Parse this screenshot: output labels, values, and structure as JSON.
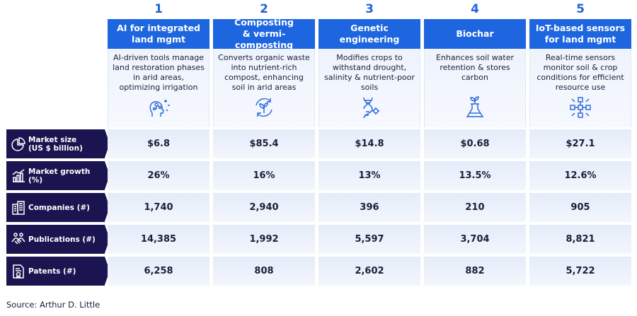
{
  "columns": [
    {
      "number": "1",
      "title": "AI for integrated\nland mgmt",
      "description": "AI-driven tools manage land restoration phases in arid areas, optimizing irrigation",
      "icon": "ai-head-icon"
    },
    {
      "number": "2",
      "title": "Composting\n& vermi-composting",
      "description": "Converts organic waste into nutrient-rich compost, enhancing soil in arid areas",
      "icon": "recycle-sprout-icon"
    },
    {
      "number": "3",
      "title": "Genetic\nengineering",
      "description": "Modifies crops to withstand drought, salinity & nutrient-poor soils",
      "icon": "dna-icon"
    },
    {
      "number": "4",
      "title": "Biochar",
      "description": "Enhances soil water retention & stores carbon",
      "icon": "flask-leaf-icon"
    },
    {
      "number": "5",
      "title": "IoT-based sensors\nfor land mgmt",
      "description": "Real-time sensors monitor soil & crop conditions for efficient resource use",
      "icon": "sensor-network-icon"
    }
  ],
  "rows": [
    {
      "label": "Market size\n(US $ billion)",
      "icon": "pie-chart-icon",
      "values": [
        "$6.8",
        "$85.4",
        "$14.8",
        "$0.68",
        "$27.1"
      ]
    },
    {
      "label": "Market growth\n(%)",
      "icon": "growth-chart-icon",
      "values": [
        "26%",
        "16%",
        "13%",
        "13.5%",
        "12.6%"
      ]
    },
    {
      "label": "Companies (#)",
      "icon": "building-icon",
      "values": [
        "1,740",
        "2,940",
        "396",
        "210",
        "905"
      ]
    },
    {
      "label": "Publications (#)",
      "icon": "handshake-icon",
      "values": [
        "14,385",
        "1,992",
        "5,597",
        "3,704",
        "8,821"
      ]
    },
    {
      "label": "Patents (#)",
      "icon": "patent-icon",
      "values": [
        "6,258",
        "808",
        "2,602",
        "882",
        "5,722"
      ]
    }
  ],
  "source": "Source: Arthur D. Little",
  "colors": {
    "accent": "#1e66e0",
    "number": "#2563d9",
    "row_label_bg": "#1a1550",
    "cell_bg": "#e8eff9"
  }
}
